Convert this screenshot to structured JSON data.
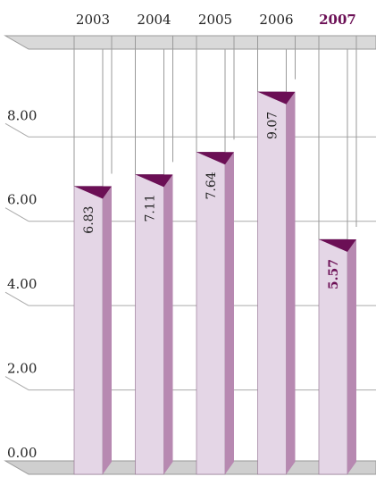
{
  "chart_data": {
    "type": "bar",
    "categories": [
      "2003",
      "2004",
      "2005",
      "2006",
      "2007"
    ],
    "values": [
      6.83,
      7.11,
      7.64,
      9.07,
      5.57
    ],
    "value_labels": [
      "6.83",
      "7.11",
      "7.64",
      "9.07",
      "5.57"
    ],
    "highlight_index": 4,
    "ylim": [
      0,
      10.4
    ],
    "yticks": [
      {
        "value": 0,
        "label": "0.00"
      },
      {
        "value": 2,
        "label": "2.00"
      },
      {
        "value": 4,
        "label": "4.00"
      },
      {
        "value": 6,
        "label": "6.00"
      },
      {
        "value": 8,
        "label": "8.00"
      }
    ],
    "title": "",
    "xlabel": "",
    "ylabel": "",
    "grid": true,
    "colors": {
      "bar_front": "#e4d6e6",
      "bar_side": "#b789b1",
      "bar_top": "#6b0f55",
      "highlight": "#6b0f55",
      "grid": "#aaaaaa",
      "floor": "#cfcfcf"
    }
  }
}
